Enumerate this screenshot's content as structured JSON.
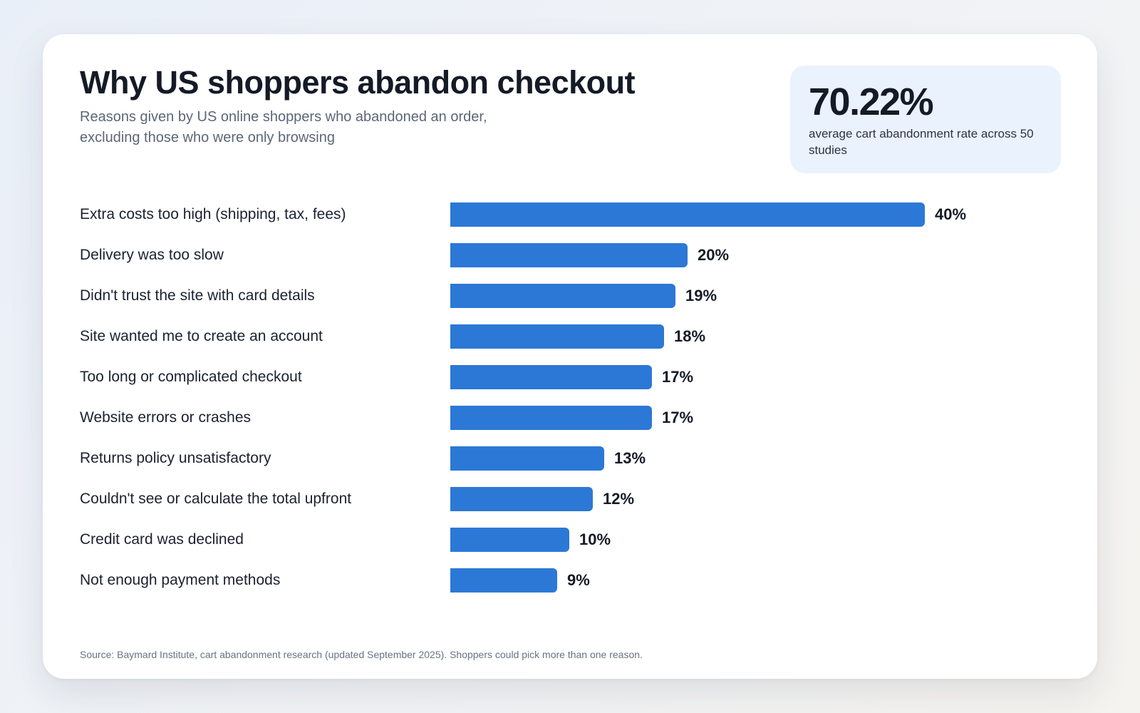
{
  "chart_data": {
    "type": "bar",
    "orientation": "horizontal",
    "title": "Why US shoppers abandon checkout",
    "subtitle": "Reasons given by US online shoppers who abandoned an order, excluding those who were only browsing",
    "categories": [
      "Extra costs too high (shipping, tax, fees)",
      "Delivery was too slow",
      "Didn't trust the site with card details",
      "Site wanted me to create an account",
      "Too long or complicated checkout",
      "Website errors or crashes",
      "Returns policy unsatisfactory",
      "Couldn't see or calculate the total upfront",
      "Credit card was declined",
      "Not enough payment methods"
    ],
    "values": [
      40,
      20,
      19,
      18,
      17,
      17,
      13,
      12,
      10,
      9
    ],
    "value_labels": [
      "40%",
      "20%",
      "19%",
      "18%",
      "17%",
      "17%",
      "13%",
      "12%",
      "10%",
      "9%"
    ],
    "unit": "%",
    "xlim": [
      0,
      40
    ],
    "grid": false,
    "legend": "none",
    "bar_color": "#2c78d6"
  },
  "highlight": {
    "value": "70.22%",
    "label": "average cart abandonment rate across 50 studies"
  },
  "source": "Source: Baymard Institute, cart abandonment research (updated September 2025). Shoppers could pick more than one reason.",
  "colors": {
    "bar": "#2c78d6",
    "stat_box": "#eaf2fd",
    "text_primary": "#141a26",
    "text_secondary": "#5c6678"
  }
}
